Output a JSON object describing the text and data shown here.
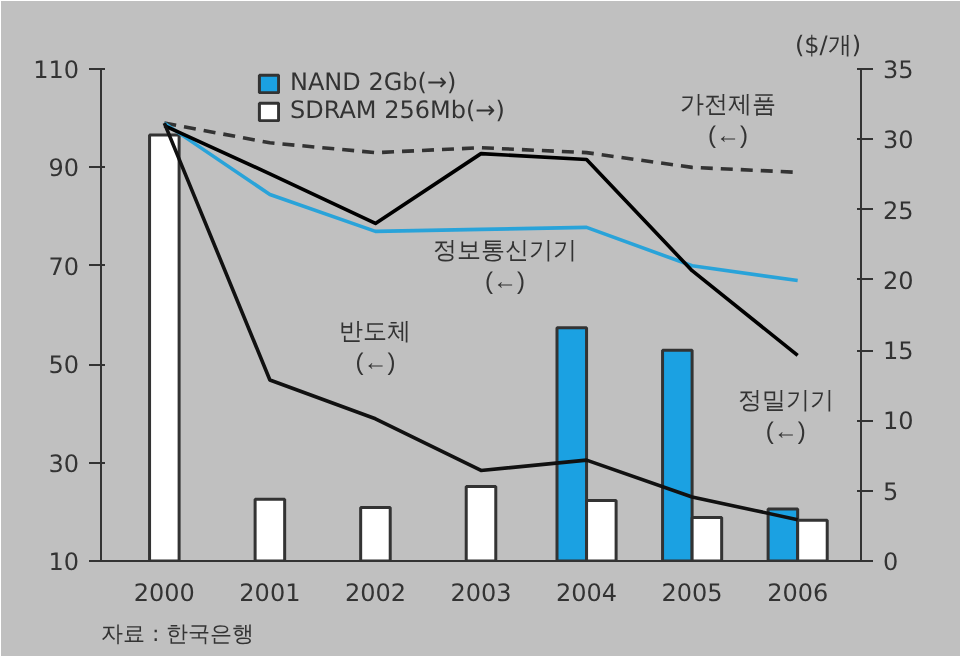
{
  "chart_data": {
    "type": "line",
    "categories": [
      "2000",
      "2001",
      "2002",
      "2003",
      "2004",
      "2005",
      "2006"
    ],
    "ylim": [
      10,
      110
    ],
    "yticks": [
      10,
      30,
      50,
      70,
      90,
      110
    ],
    "y2lim": [
      0,
      35
    ],
    "y2ticks": [
      0,
      5,
      10,
      15,
      20,
      25,
      30,
      35
    ],
    "y2label": "($/개)",
    "series": [
      {
        "type": "bar",
        "axis": "y2",
        "name": "NAND 2Gb(→)",
        "color": "#1ba1e2",
        "values": [
          null,
          null,
          null,
          null,
          16.6,
          15,
          3.7
        ]
      },
      {
        "type": "bar",
        "axis": "y2",
        "name": "SDRAM 256Mb(→)",
        "color": "#ffffff",
        "values": [
          30.3,
          4.4,
          3.8,
          5.3,
          4.3,
          3.1,
          2.9
        ]
      },
      {
        "name": "가전제품\n(←)",
        "color": "#333333",
        "line_style": "dashed",
        "values": [
          99,
          95,
          93,
          94,
          93,
          90,
          89
        ]
      },
      {
        "name": "정보통신기기\n(←)",
        "color": "#29a3d9",
        "values": [
          99,
          84.5,
          77,
          77.4,
          77.8,
          70,
          67
        ]
      },
      {
        "name": "정밀기기\n(←)",
        "color": "#000000",
        "values": [
          98.5,
          88.7,
          78.6,
          92.8,
          91.6,
          69,
          51.8
        ]
      },
      {
        "name": "반도체\n(←)",
        "color": "#111111",
        "values": [
          99,
          46.8,
          38.9,
          28.4,
          30.5,
          23,
          18.4
        ]
      }
    ],
    "annotations": [
      "자료 : 한국은행"
    ],
    "legend": "top left",
    "grid": false
  }
}
